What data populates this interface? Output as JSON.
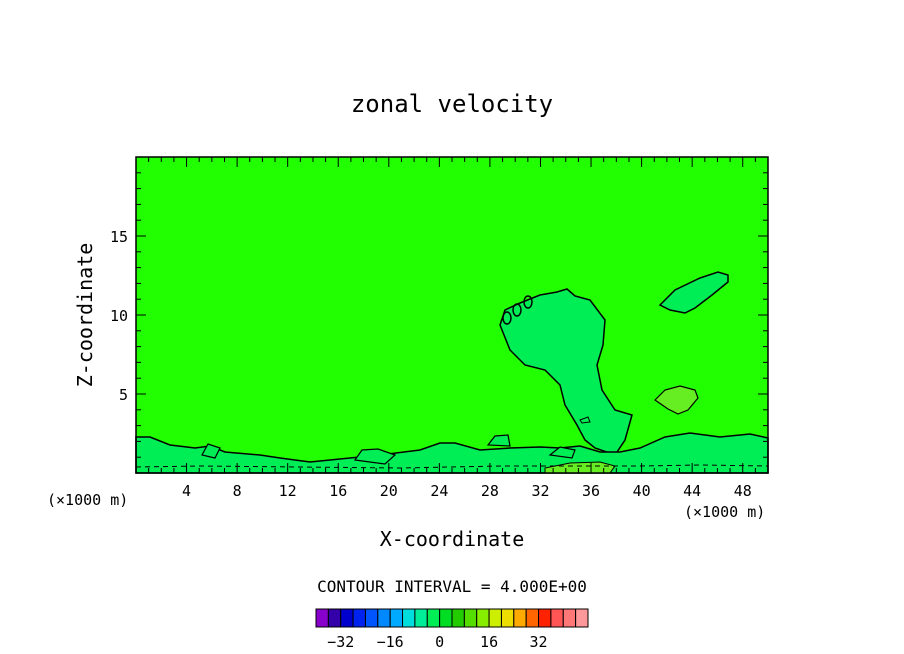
{
  "chart_data": {
    "type": "heatmap",
    "title": "zonal velocity",
    "xlabel": "X-coordinate",
    "ylabel": "Z-coordinate",
    "x_unit_left": "(×1000 m)",
    "x_unit_right": "(×1000 m)",
    "xlim": [
      0,
      50
    ],
    "ylim": [
      0,
      20
    ],
    "x_ticks": [
      4,
      8,
      12,
      16,
      20,
      24,
      28,
      32,
      36,
      40,
      44,
      48
    ],
    "y_ticks": [
      5,
      10,
      15
    ],
    "background_value_color": "#22ff00",
    "contour_interval_label": "CONTOUR INTERVAL = 4.000E+00",
    "contour_interval": 4.0,
    "regions": [
      {
        "name": "central positive-anomaly plume",
        "approx_x": [
          29,
          38
        ],
        "approx_z": [
          3,
          11.5
        ],
        "color": "#00ee55"
      },
      {
        "name": "upper right positive patch",
        "approx_x": [
          41,
          47
        ],
        "approx_z": [
          10,
          12.5
        ],
        "color": "#00ee55"
      },
      {
        "name": "mid right weak patch",
        "approx_x": [
          41.5,
          44.5
        ],
        "approx_z": [
          3.8,
          5.4
        ],
        "color": "#66ee22"
      },
      {
        "name": "near-surface layer",
        "approx_x": [
          0,
          50
        ],
        "approx_z": [
          0,
          2.5
        ],
        "color": "#00ee55"
      }
    ],
    "colorbar": {
      "colors": [
        "#8800cc",
        "#3300aa",
        "#0000cc",
        "#0022ee",
        "#0055ff",
        "#0088ff",
        "#00aaff",
        "#00dddd",
        "#00ee99",
        "#00ee55",
        "#00dd22",
        "#22cc00",
        "#55dd00",
        "#88ee00",
        "#ccee00",
        "#eedd00",
        "#ffaa00",
        "#ff6600",
        "#ff2200",
        "#ff5555",
        "#ff7777",
        "#ff9999"
      ],
      "tick_labels": [
        "−32",
        "−16",
        "0",
        "16",
        "32"
      ],
      "tick_values": [
        -32,
        -16,
        0,
        16,
        32
      ],
      "range": [
        -40,
        48
      ]
    }
  }
}
